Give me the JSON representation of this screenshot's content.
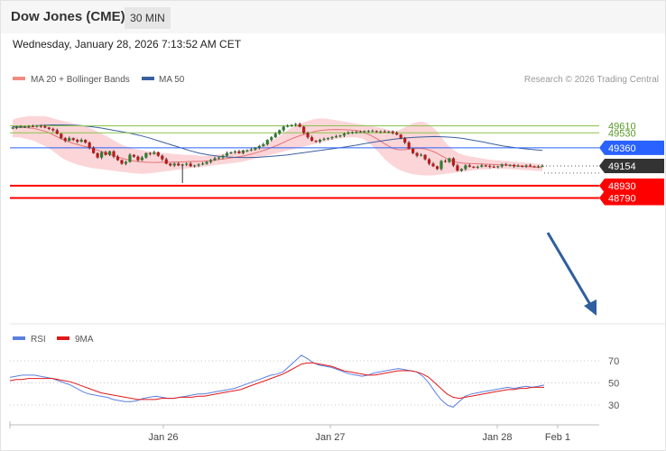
{
  "header": {
    "title": "Dow Jones (CME)",
    "timeframe": "30 MIN",
    "datetime": "Wednesday, January 28, 2026 7:13:52 AM CET"
  },
  "legend": {
    "ma20": "MA 20 + Bollinger Bands",
    "ma50": "MA 50",
    "copyright": "Research © 2026 Trading Central",
    "rsi": "RSI",
    "rsi_ma": "9MA"
  },
  "colors": {
    "bull_candle": "#2e7d32",
    "bear_candle": "#b71c1c",
    "bollinger_fill": "#fbd5d8",
    "ma20": "#e57373",
    "ma50": "#3a5fa0",
    "resistance": "#8bc34a",
    "pivot": "#2962ff",
    "support": "#ff0000",
    "current": "#333333",
    "arrow": "#2f5f9e",
    "rsi": "#5b7fe0",
    "rsi_ma": "#e01818"
  },
  "chart_data": [
    {
      "type": "candlestick",
      "title": "Dow Jones (CME)",
      "y_range": [
        48740,
        49760
      ],
      "levels": [
        {
          "label": "49610",
          "value": 49610,
          "kind": "resistance"
        },
        {
          "label": "49530",
          "value": 49530,
          "kind": "resistance"
        },
        {
          "label": "49360",
          "value": 49360,
          "kind": "pivot"
        },
        {
          "label": "49154",
          "value": 49154,
          "kind": "current"
        },
        {
          "label": "48930",
          "value": 48930,
          "kind": "support"
        },
        {
          "label": "48790",
          "value": 48790,
          "kind": "support"
        }
      ],
      "x_labels": [
        "Jan 26",
        "Jan 27",
        "Jan 28",
        "Feb 1"
      ],
      "close": [
        49590,
        49595,
        49598,
        49600,
        49605,
        49603,
        49610,
        49605,
        49590,
        49575,
        49560,
        49520,
        49470,
        49440,
        49470,
        49450,
        49430,
        49450,
        49420,
        49360,
        49300,
        49250,
        49310,
        49280,
        49320,
        49260,
        49220,
        49180,
        49200,
        49280,
        49260,
        49220,
        49250,
        49300,
        49290,
        49310,
        49270,
        49230,
        49180,
        49160,
        49180,
        49160,
        49170,
        49180,
        49150,
        49160,
        49170,
        49180,
        49200,
        49220,
        49240,
        49250,
        49270,
        49300,
        49310,
        49320,
        49300,
        49330,
        49330,
        49340,
        49360,
        49380,
        49400,
        49450,
        49480,
        49520,
        49560,
        49600,
        49610,
        49620,
        49630,
        49600,
        49530,
        49480,
        49440,
        49430,
        49450,
        49460,
        49470,
        49480,
        49490,
        49500,
        49520,
        49530,
        49540,
        49540,
        49540,
        49550,
        49550,
        49550,
        49545,
        49545,
        49540,
        49545,
        49530,
        49510,
        49470,
        49420,
        49350,
        49300,
        49270,
        49280,
        49230,
        49180,
        49150,
        49120,
        49210,
        49200,
        49240,
        49160,
        49100,
        49120,
        49160,
        49145,
        49140,
        49145,
        49160,
        49155,
        49145,
        49140,
        49150,
        49170,
        49160,
        49165,
        49150,
        49155,
        49150,
        49160,
        49150,
        49148,
        49150,
        49154
      ],
      "bollinger_upper": [
        49680,
        49700,
        49710,
        49720,
        49720,
        49720,
        49720,
        49710,
        49690,
        49675,
        49660,
        49645,
        49630,
        49615,
        49600,
        49580,
        49550,
        49520,
        49490,
        49455,
        49420,
        49390,
        49370,
        49350,
        49340,
        49330,
        49320,
        49310,
        49305,
        49300,
        49295,
        49290,
        49285,
        49280,
        49280,
        49275,
        49270,
        49270,
        49275,
        49280,
        49290,
        49300,
        49310,
        49320,
        49330,
        49340,
        49360,
        49380,
        49400,
        49430,
        49460,
        49500,
        49540,
        49580,
        49610,
        49640,
        49660,
        49680,
        49690,
        49695,
        49690,
        49680,
        49670,
        49660,
        49650,
        49640,
        49630,
        49620,
        49610,
        49600,
        49590,
        49575,
        49560,
        49550,
        49570,
        49600,
        49630,
        49650,
        49660,
        49640,
        49600,
        49540,
        49460,
        49390,
        49340,
        49300,
        49280,
        49265,
        49255,
        49245,
        49235,
        49225,
        49220,
        49215,
        49210,
        49205,
        49200,
        49195,
        49190,
        49185,
        49180,
        49175
      ],
      "bollinger_lower": [
        49480,
        49480,
        49460,
        49440,
        49400,
        49360,
        49300,
        49240,
        49200,
        49170,
        49150,
        49130,
        49120,
        49110,
        49100,
        49090,
        49080,
        49070,
        49065,
        49070,
        49080,
        49090,
        49100,
        49110,
        49120,
        49130,
        49140,
        49150,
        49160,
        49170,
        49180,
        49190,
        49200,
        49220,
        49240,
        49260,
        49280,
        49300,
        49320,
        49340,
        49360,
        49380,
        49400,
        49420,
        49440,
        49460,
        49470,
        49480,
        49480,
        49460,
        49400,
        49320,
        49230,
        49160,
        49110,
        49080,
        49060,
        49050,
        49045,
        49050,
        49060,
        49070,
        49080,
        49090,
        49100,
        49110,
        49115,
        49120,
        49120,
        49120,
        49115,
        49110,
        49105,
        49100,
        49095
      ],
      "ma50": [
        49600,
        49605,
        49610,
        49615,
        49620,
        49620,
        49618,
        49612,
        49600,
        49585,
        49565,
        49545,
        49525,
        49500,
        49470,
        49435,
        49400,
        49365,
        49330,
        49300,
        49280,
        49265,
        49255,
        49250,
        49250,
        49252,
        49260,
        49270,
        49280,
        49295,
        49310,
        49325,
        49340,
        49355,
        49372,
        49390,
        49410,
        49428,
        49445,
        49460,
        49472,
        49480,
        49485,
        49488,
        49485,
        49478,
        49465,
        49445,
        49425,
        49402,
        49380,
        49365,
        49352,
        49340,
        49330
      ],
      "rsi": [
        55,
        56,
        57,
        57,
        57,
        56,
        55,
        54,
        52,
        50,
        48,
        45,
        42,
        40,
        39,
        38,
        37,
        35,
        34,
        33,
        33,
        34,
        36,
        37,
        38,
        37,
        36,
        36,
        37,
        38,
        39,
        40,
        40,
        41,
        42,
        43,
        44,
        45,
        47,
        49,
        51,
        53,
        55,
        57,
        58,
        60,
        65,
        70,
        75,
        72,
        68,
        66,
        65,
        64,
        62,
        60,
        58,
        57,
        56,
        57,
        59,
        60,
        61,
        62,
        63,
        62,
        61,
        60,
        56,
        50,
        42,
        35,
        30,
        28,
        33,
        38,
        40,
        41,
        42,
        43,
        44,
        45,
        46,
        45,
        46,
        47,
        46,
        47,
        48
      ],
      "rsi_ma": [
        52,
        53,
        53,
        54,
        54,
        54,
        54,
        54,
        53,
        52,
        51,
        49,
        47,
        45,
        43,
        41,
        40,
        39,
        38,
        37,
        36,
        35,
        35,
        35,
        35,
        36,
        36,
        36,
        37,
        37,
        37,
        38,
        38,
        39,
        40,
        41,
        42,
        43,
        44,
        46,
        48,
        50,
        52,
        54,
        56,
        58,
        61,
        64,
        67,
        68,
        68,
        67,
        66,
        65,
        63,
        61,
        60,
        59,
        58,
        57,
        57,
        58,
        59,
        60,
        61,
        61,
        61,
        60,
        58,
        55,
        50,
        45,
        40,
        37,
        36,
        37,
        38,
        39,
        40,
        41,
        42,
        43,
        44,
        44,
        45,
        45,
        46,
        46,
        46
      ],
      "rsi_levels": [
        70,
        50,
        30
      ]
    }
  ]
}
